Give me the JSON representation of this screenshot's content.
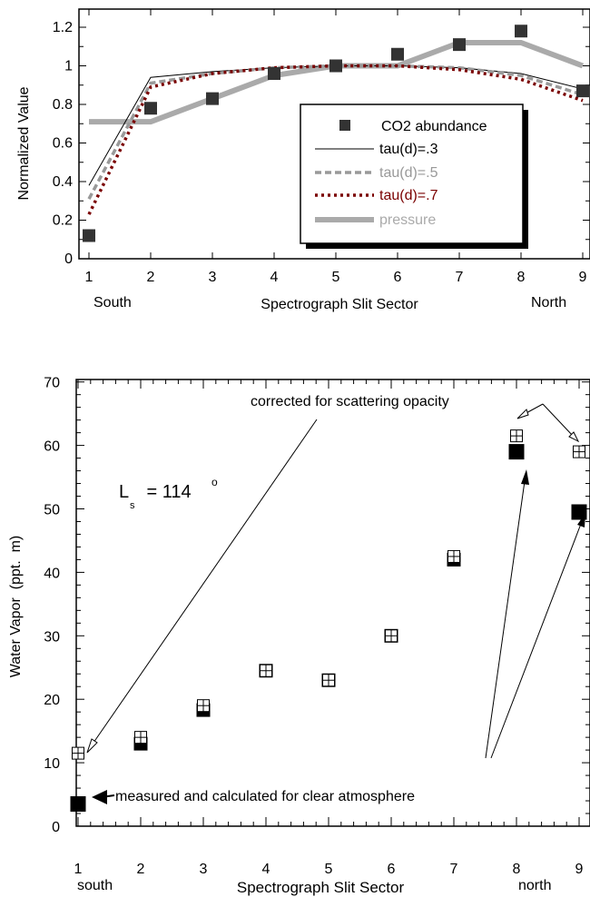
{
  "chart_data": [
    {
      "type": "line",
      "xlabel": "Spectrograph Slit Sector",
      "ylabel": "Normalized Value",
      "x_tick_labels": [
        "1",
        "2",
        "3",
        "4",
        "5",
        "6",
        "7",
        "8",
        "9"
      ],
      "y_tick_labels": [
        "0",
        "0.2",
        "0.4",
        "0.6",
        "0.8",
        "1",
        "1.2"
      ],
      "x_end_labels": {
        "left": "South",
        "right": "North"
      },
      "xlim": [
        1,
        9
      ],
      "ylim": [
        0,
        1.3
      ],
      "legend_placement": "lower-right",
      "grid": false,
      "series": [
        {
          "name": "CO2 abundance",
          "kind": "markers",
          "color": "#333333",
          "x": [
            1,
            2,
            3,
            4,
            5,
            6,
            7,
            8,
            9
          ],
          "y": [
            0.12,
            0.78,
            0.83,
            0.96,
            1.0,
            1.06,
            1.11,
            1.18,
            0.87
          ]
        },
        {
          "name": "tau(d)=.3",
          "kind": "line",
          "color": "#000000",
          "x": [
            1,
            2,
            3,
            4,
            5,
            6,
            7,
            8,
            9
          ],
          "y": [
            0.38,
            0.94,
            0.97,
            0.99,
            1.0,
            1.0,
            0.99,
            0.96,
            0.88
          ]
        },
        {
          "name": "tau(d)=.5",
          "kind": "dashed",
          "color": "#999999",
          "x": [
            1,
            2,
            3,
            4,
            5,
            6,
            7,
            8,
            9
          ],
          "y": [
            0.31,
            0.91,
            0.96,
            0.99,
            1.0,
            1.0,
            0.99,
            0.95,
            0.85
          ]
        },
        {
          "name": "tau(d)=.7",
          "kind": "dotted",
          "color": "#7a0000",
          "x": [
            1,
            2,
            3,
            4,
            5,
            6,
            7,
            8,
            9
          ],
          "y": [
            0.23,
            0.89,
            0.96,
            0.99,
            1.0,
            1.0,
            0.98,
            0.93,
            0.82
          ]
        },
        {
          "name": "pressure",
          "kind": "thick",
          "color": "#aaaaaa",
          "x": [
            1,
            2,
            3,
            4,
            5,
            6,
            7,
            8,
            9
          ],
          "y": [
            0.71,
            0.71,
            0.83,
            0.95,
            1.0,
            1.0,
            1.12,
            1.12,
            1.0
          ]
        }
      ]
    },
    {
      "type": "scatter",
      "xlabel": "Spectrograph Slit Sector",
      "ylabel": "Water Vapor  (ppt.  m)",
      "x_tick_labels": [
        "1",
        "2",
        "3",
        "4",
        "5",
        "6",
        "7",
        "8",
        "9"
      ],
      "y_tick_labels": [
        "0",
        "10",
        "20",
        "30",
        "40",
        "50",
        "60",
        "70"
      ],
      "x_end_labels": {
        "left": "south",
        "right": "north"
      },
      "xlim": [
        1,
        9
      ],
      "ylim": [
        0,
        70
      ],
      "grid": false,
      "series": [
        {
          "name": "measured and calculated for clear atmosphere",
          "marker": "filled-square",
          "x": [
            1,
            2,
            3,
            4,
            5,
            6,
            7,
            8,
            9
          ],
          "y": [
            3.5,
            13,
            18.3,
            24.5,
            23,
            30,
            42,
            59,
            49.5
          ]
        },
        {
          "name": "corrected for scattering opacity",
          "marker": "crossed-square",
          "x": [
            1,
            2,
            3,
            4,
            5,
            6,
            7,
            8,
            9
          ],
          "y": [
            11.5,
            14,
            19,
            24.5,
            23,
            30,
            42.5,
            61.5,
            59
          ]
        }
      ],
      "annotations": {
        "ls_label": "L",
        "ls_subscript": "s",
        "ls_value": " = 114",
        "ls_degree": "o",
        "corrected": "corrected for scattering opacity",
        "measured": "measured and calculated for clear atmosphere"
      }
    }
  ]
}
